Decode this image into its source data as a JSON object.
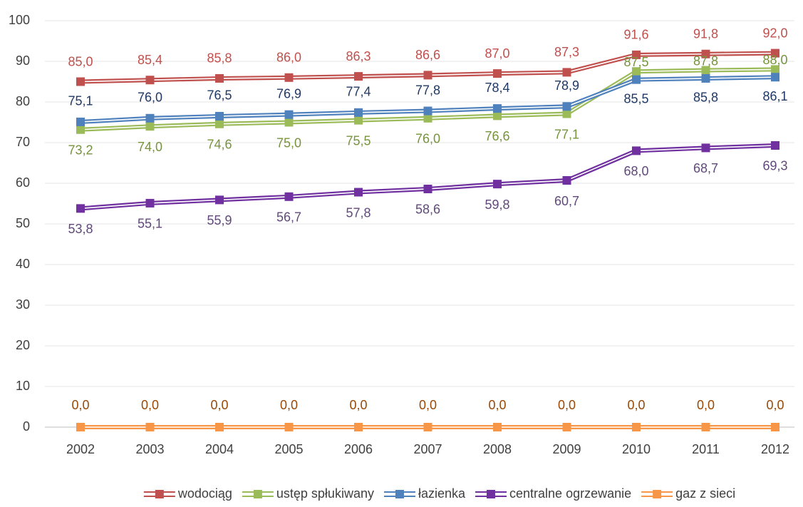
{
  "chart_data": {
    "type": "line",
    "categories": [
      "2002",
      "2003",
      "2004",
      "2005",
      "2006",
      "2007",
      "2008",
      "2009",
      "2010",
      "2011",
      "2012"
    ],
    "ylim": [
      0,
      100
    ],
    "yticks": [
      0,
      10,
      20,
      30,
      40,
      50,
      60,
      70,
      80,
      90,
      100
    ],
    "grid": true,
    "legend": "bottom",
    "series": [
      {
        "name": "wodociąg",
        "color": "#c0504d",
        "label_color": "#c0504d",
        "values": [
          85.0,
          85.4,
          85.8,
          86.0,
          86.3,
          86.6,
          87.0,
          87.3,
          91.6,
          91.8,
          92.0
        ],
        "value_labels": [
          "85,0",
          "85,4",
          "85,8",
          "86,0",
          "86,3",
          "86,6",
          "87,0",
          "87,3",
          "91,6",
          "91,8",
          "92,0"
        ]
      },
      {
        "name": "ustęp spłukiwany",
        "color": "#9bbb59",
        "label_color": "#77933c",
        "values": [
          73.2,
          74.0,
          74.6,
          75.0,
          75.5,
          76.0,
          76.6,
          77.1,
          87.5,
          87.8,
          88.0
        ],
        "value_labels": [
          "73,2",
          "74,0",
          "74,6",
          "75,0",
          "75,5",
          "76,0",
          "76,6",
          "77,1",
          "87,5",
          "87,8",
          "88,0"
        ]
      },
      {
        "name": "łazienka",
        "color": "#4f81bd",
        "label_color": "#1f3864",
        "values": [
          75.1,
          76.0,
          76.5,
          76.9,
          77.4,
          77.8,
          78.4,
          78.9,
          85.5,
          85.8,
          86.1
        ],
        "value_labels": [
          "75,1",
          "76,0",
          "76,5",
          "76,9",
          "77,4",
          "77,8",
          "78,4",
          "78,9",
          "85,5",
          "85,8",
          "86,1"
        ]
      },
      {
        "name": "centralne ogrzewanie",
        "color": "#7030a0",
        "label_color": "#60497a",
        "values": [
          53.8,
          55.1,
          55.9,
          56.7,
          57.8,
          58.6,
          59.8,
          60.7,
          68.0,
          68.7,
          69.3
        ],
        "value_labels": [
          "53,8",
          "55,1",
          "55,9",
          "56,7",
          "57,8",
          "58,6",
          "59,8",
          "60,7",
          "68,0",
          "68,7",
          "69,3"
        ]
      },
      {
        "name": "gaz z sieci",
        "color": "#f79646",
        "label_color": "#984807",
        "values": [
          0.0,
          0.0,
          0.0,
          0.0,
          0.0,
          0.0,
          0.0,
          0.0,
          0.0,
          0.0,
          0.0
        ],
        "value_labels": [
          "0,0",
          "0,0",
          "0,0",
          "0,0",
          "0,0",
          "0,0",
          "0,0",
          "0,0",
          "0,0",
          "0,0",
          "0,0"
        ]
      }
    ]
  }
}
